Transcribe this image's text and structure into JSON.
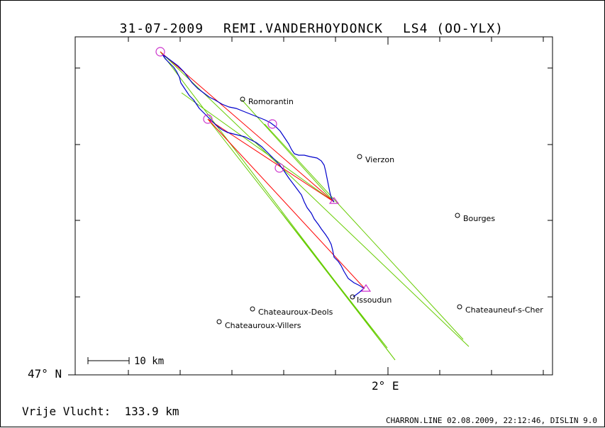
{
  "header": {
    "date": "31-07-2009",
    "pilot": "REMI.VANDERHOYDONCK",
    "glider": "LS4 (OO-YLX)"
  },
  "axes": {
    "lat_label": "47° N",
    "lon_label": "2° E"
  },
  "scale_bar": {
    "label": "10 km"
  },
  "footer": {
    "distance_label": "Vrije Vlucht:",
    "distance_value": "133.9 km",
    "credits": "CHARRON.LINE 02.08.2009, 22:12:46, DISLIN 9.0"
  },
  "cities": [
    {
      "name": "Romorantin"
    },
    {
      "name": "Vierzon"
    },
    {
      "name": "Bourges"
    },
    {
      "name": "Issoudun"
    },
    {
      "name": "Chateauroux-Deols"
    },
    {
      "name": "Chateauroux-Villers"
    },
    {
      "name": "Chateauneuf-s-Cher"
    }
  ],
  "colors": {
    "track": "#0000cc",
    "task": "#ff0000",
    "sector": "#66cc00",
    "turnpoint": "#cc33cc"
  }
}
